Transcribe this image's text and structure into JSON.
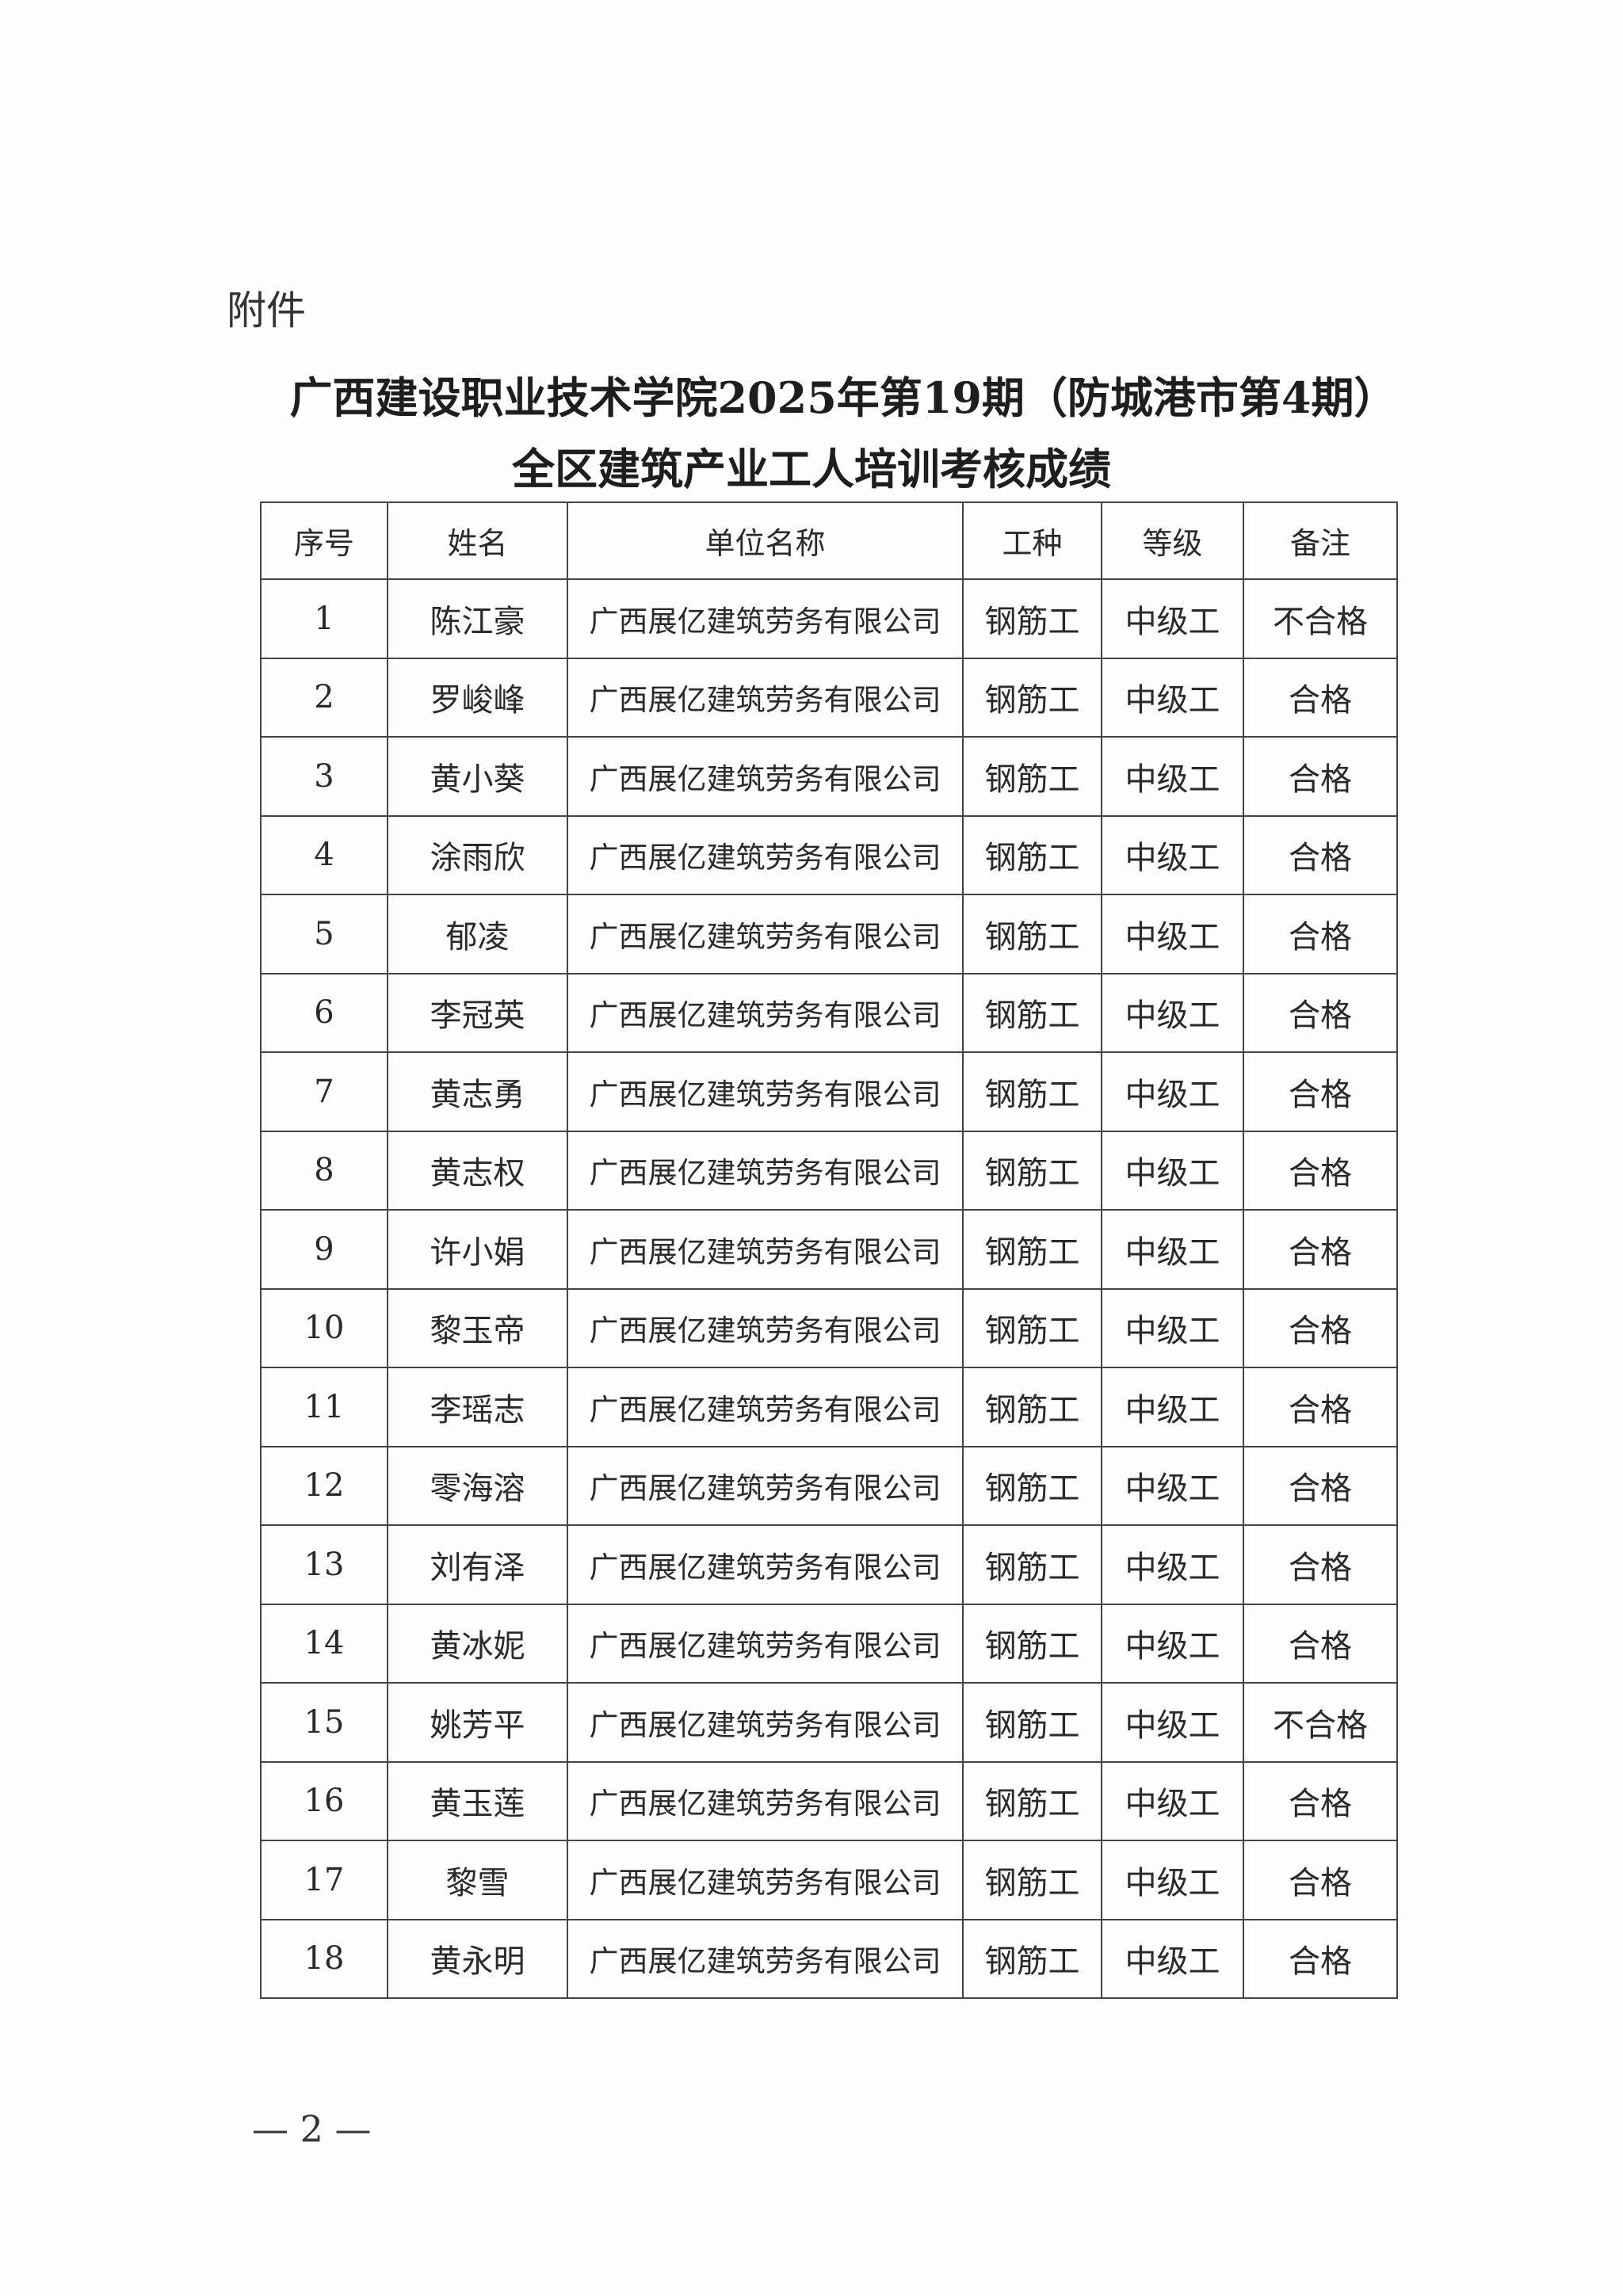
{
  "attachment_label": "附件",
  "title_line1": "广西建设职业技术学院2025年第19期（防城港市第4期）",
  "title_line2": "全区建筑产业工人培训考核成绩",
  "table": {
    "headers": [
      "序号",
      "姓名",
      "单位名称",
      "工种",
      "等级",
      "备注"
    ],
    "rows": [
      [
        "1",
        "陈江豪",
        "广西展亿建筑劳务有限公司",
        "钢筋工",
        "中级工",
        "不合格"
      ],
      [
        "2",
        "罗峻峰",
        "广西展亿建筑劳务有限公司",
        "钢筋工",
        "中级工",
        "合格"
      ],
      [
        "3",
        "黄小葵",
        "广西展亿建筑劳务有限公司",
        "钢筋工",
        "中级工",
        "合格"
      ],
      [
        "4",
        "涂雨欣",
        "广西展亿建筑劳务有限公司",
        "钢筋工",
        "中级工",
        "合格"
      ],
      [
        "5",
        "郁凌",
        "广西展亿建筑劳务有限公司",
        "钢筋工",
        "中级工",
        "合格"
      ],
      [
        "6",
        "李冠英",
        "广西展亿建筑劳务有限公司",
        "钢筋工",
        "中级工",
        "合格"
      ],
      [
        "7",
        "黄志勇",
        "广西展亿建筑劳务有限公司",
        "钢筋工",
        "中级工",
        "合格"
      ],
      [
        "8",
        "黄志权",
        "广西展亿建筑劳务有限公司",
        "钢筋工",
        "中级工",
        "合格"
      ],
      [
        "9",
        "许小娟",
        "广西展亿建筑劳务有限公司",
        "钢筋工",
        "中级工",
        "合格"
      ],
      [
        "10",
        "黎玉帝",
        "广西展亿建筑劳务有限公司",
        "钢筋工",
        "中级工",
        "合格"
      ],
      [
        "11",
        "李瑶志",
        "广西展亿建筑劳务有限公司",
        "钢筋工",
        "中级工",
        "合格"
      ],
      [
        "12",
        "零海溶",
        "广西展亿建筑劳务有限公司",
        "钢筋工",
        "中级工",
        "合格"
      ],
      [
        "13",
        "刘有泽",
        "广西展亿建筑劳务有限公司",
        "钢筋工",
        "中级工",
        "合格"
      ],
      [
        "14",
        "黄冰妮",
        "广西展亿建筑劳务有限公司",
        "钢筋工",
        "中级工",
        "合格"
      ],
      [
        "15",
        "姚芳平",
        "广西展亿建筑劳务有限公司",
        "钢筋工",
        "中级工",
        "不合格"
      ],
      [
        "16",
        "黄玉莲",
        "广西展亿建筑劳务有限公司",
        "钢筋工",
        "中级工",
        "合格"
      ],
      [
        "17",
        "黎雪",
        "广西展亿建筑劳务有限公司",
        "钢筋工",
        "中级工",
        "合格"
      ],
      [
        "18",
        "黄永明",
        "广西展亿建筑劳务有限公司",
        "钢筋工",
        "中级工",
        "合格"
      ]
    ]
  },
  "page_number": "— 2 —"
}
